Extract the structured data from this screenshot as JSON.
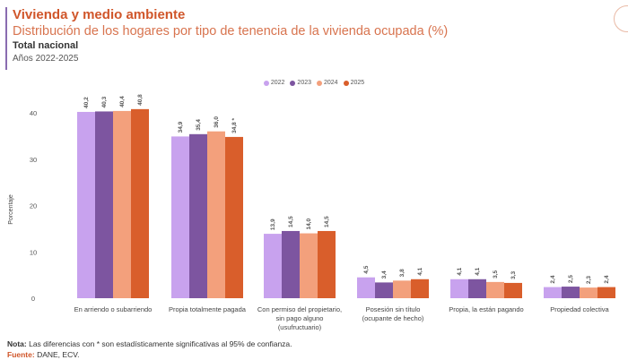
{
  "header": {
    "title": "Vivienda y medio ambiente",
    "subtitle": "Distribución de los hogares por tipo de tenencia de la vivienda ocupada (%)",
    "scope": "Total nacional",
    "years": "Años 2022-2025"
  },
  "chart_data": {
    "type": "bar",
    "ylabel": "Porcentaje",
    "ylim": [
      0,
      42
    ],
    "yticks": [
      0,
      10,
      20,
      30,
      40
    ],
    "legend_position": "top-center",
    "categories": [
      "En arriendo o subarriendo",
      "Propia totalmente pagada",
      "Con permiso del propietario, sin pago alguno (usufructuario)",
      "Posesión sin título (ocupante de hecho)",
      "Propia, la están pagando",
      "Propiedad colectiva"
    ],
    "series": [
      {
        "name": "2022",
        "color": "#c8a2ee",
        "values": [
          40.2,
          34.9,
          13.9,
          4.5,
          4.1,
          2.4
        ],
        "labels": [
          "40,2",
          "34,9",
          "13,9",
          "4,5",
          "4,1",
          "2,4"
        ]
      },
      {
        "name": "2023",
        "color": "#7d55a0",
        "values": [
          40.3,
          35.4,
          14.5,
          3.4,
          4.1,
          2.5
        ],
        "labels": [
          "40,3",
          "35,4",
          "14,5",
          "3,4",
          "4,1",
          "2,5"
        ]
      },
      {
        "name": "2024",
        "color": "#f3a07c",
        "values": [
          40.4,
          36.0,
          14.0,
          3.8,
          3.5,
          2.3
        ],
        "labels": [
          "40,4",
          "36,0",
          "14,0",
          "3,8",
          "3,5",
          "2,3"
        ]
      },
      {
        "name": "2025",
        "color": "#d95e2b",
        "values": [
          40.8,
          34.8,
          14.5,
          4.1,
          3.3,
          2.4
        ],
        "labels": [
          "40,8",
          "34,8 *",
          "14,5",
          "4,1",
          "3,3",
          "2,4"
        ]
      }
    ]
  },
  "footer": {
    "note_label": "Nota:",
    "note": " Las diferencias con * son estadísticamente significativas al 95% de confianza.",
    "source_label": "Fuente:",
    "source": " DANE, ECV."
  }
}
